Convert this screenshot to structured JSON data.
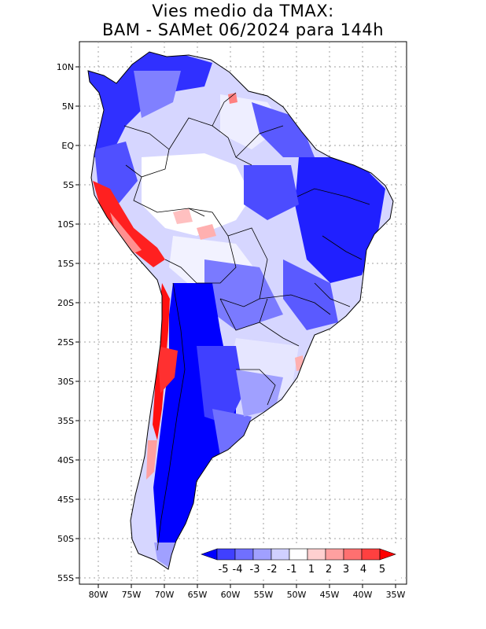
{
  "title": {
    "line1": "Vies medio da TMAX:",
    "line2": "BAM - SAMet 06/2024  para 144h"
  },
  "map": {
    "region": "South America",
    "variable": "TMAX mean bias",
    "lat_labels": [
      "10N",
      "5N",
      "EQ",
      "5S",
      "10S",
      "15S",
      "20S",
      "25S",
      "30S",
      "35S",
      "40S",
      "45S",
      "50S",
      "55S"
    ],
    "lon_labels": [
      "80W",
      "75W",
      "70W",
      "65W",
      "60W",
      "55W",
      "50W",
      "45W",
      "40W",
      "35W"
    ]
  },
  "colorbar": {
    "labels": [
      "-5",
      "-4",
      "-3",
      "-2",
      "-1",
      "1",
      "2",
      "3",
      "4",
      "5"
    ],
    "colors": [
      "#0000ff",
      "#4040ff",
      "#7070ff",
      "#a0a0ff",
      "#d0d0ff",
      "#ffffff",
      "#ffd0d0",
      "#ffa0a0",
      "#ff7070",
      "#ff4040",
      "#ff0000"
    ]
  }
}
